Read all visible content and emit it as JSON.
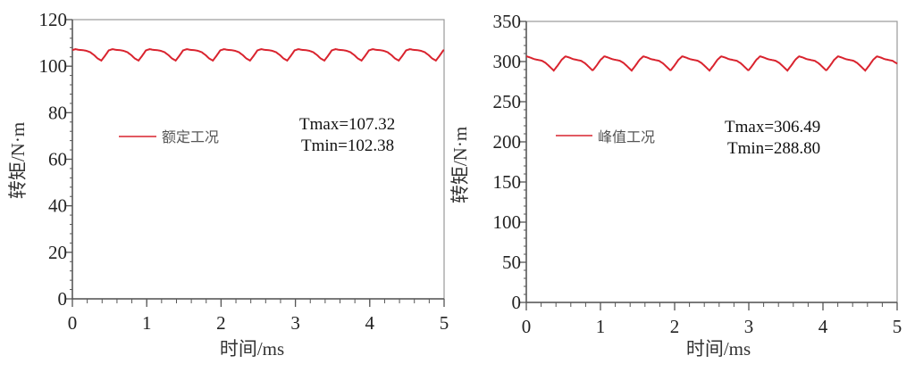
{
  "colors": {
    "line": "#d9232e",
    "axis": "#555555"
  },
  "chart_data": [
    {
      "type": "line",
      "xlabel": "时间/ms",
      "ylabel": "转矩/N·m",
      "xlim": [
        0,
        5
      ],
      "ylim": [
        0,
        120
      ],
      "xticks": [
        "0",
        "1",
        "2",
        "3",
        "4",
        "5"
      ],
      "yticks": [
        "0",
        "20",
        "40",
        "60",
        "80",
        "100",
        "120"
      ],
      "ytick_values": [
        0,
        20,
        40,
        60,
        80,
        100,
        120
      ],
      "x_minor_step": 0.2,
      "y_minor_step": 4,
      "grid": false,
      "legend": {
        "label": "额定工况",
        "placement": "center-left"
      },
      "annotations": [
        "Tmax=107.32",
        "Tmin=102.38"
      ],
      "series": [
        {
          "name": "额定工况",
          "period_ms": 0.5,
          "first_min_ms": 0.39,
          "cycle_step_ms": 0.05,
          "cycle_values": [
            102.4,
            104.5,
            106.8,
            107.3,
            107.0,
            106.9,
            106.6,
            106.0,
            104.8,
            103.3
          ]
        }
      ]
    },
    {
      "type": "line",
      "xlabel": "时间/ms",
      "ylabel": "转矩/N·m",
      "xlim": [
        0,
        5
      ],
      "ylim": [
        0,
        350
      ],
      "xticks": [
        "0",
        "1",
        "2",
        "3",
        "4",
        "5"
      ],
      "yticks": [
        "0",
        "50",
        "100",
        "150",
        "200",
        "250",
        "300",
        "350"
      ],
      "ytick_values": [
        0,
        50,
        100,
        150,
        200,
        250,
        300,
        350
      ],
      "x_minor_step": 0.2,
      "y_minor_step": 10,
      "grid": false,
      "legend": {
        "label": "峰值工况",
        "placement": "center-left"
      },
      "annotations": [
        "Tmax=306.49",
        "Tmin=288.80"
      ],
      "series": [
        {
          "name": "峰值工况",
          "period_ms": 0.525,
          "first_min_ms": 0.37,
          "cycle_step_ms": 0.0525,
          "cycle_values": [
            288.8,
            295.0,
            302.0,
            306.5,
            305.0,
            303.0,
            302.0,
            301.0,
            298.0,
            293.5
          ]
        }
      ]
    }
  ]
}
